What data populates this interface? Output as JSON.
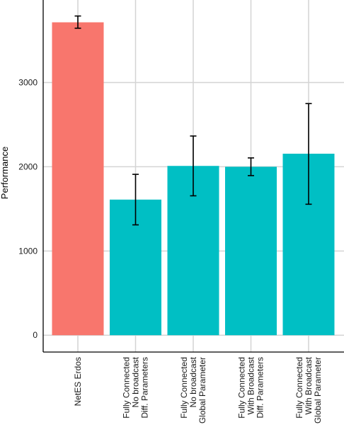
{
  "chart_data": {
    "type": "bar",
    "title": "",
    "xlabel": "",
    "ylabel": "Performance",
    "ylim": [
      -200,
      3980
    ],
    "yticks": [
      0,
      1000,
      2000,
      3000
    ],
    "grid": true,
    "categories": [
      [
        "NetES Erdos"
      ],
      [
        "Fully Connected",
        "No broadcast",
        "Diff. Parameters"
      ],
      [
        "Fully Connected",
        "No broadcast",
        "Global Parameter"
      ],
      [
        "Fully Connected",
        "With Broadcast",
        "Diff. Parameters"
      ],
      [
        "Fully Connected",
        "With Broadcast",
        "Global Parameter"
      ]
    ],
    "values": [
      3715,
      1610,
      2010,
      2000,
      2155
    ],
    "error_low": [
      3645,
      1310,
      1655,
      1895,
      1555
    ],
    "error_high": [
      3790,
      1910,
      2365,
      2105,
      2750
    ],
    "colors": [
      "#f8766d",
      "#00bfc4",
      "#00bfc4",
      "#00bfc4",
      "#00bfc4"
    ]
  }
}
